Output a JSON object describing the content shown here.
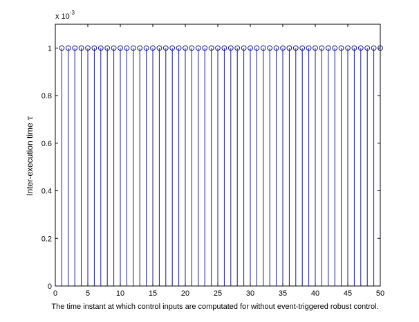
{
  "chart_data": {
    "type": "stem",
    "title": "",
    "xlabel": "The time instant at which control inputs are computated for without event-triggered robust control.",
    "ylabel": "Inter-execution time",
    "ylabel_symbol": "τ",
    "y_exponent_base": "x 10",
    "y_exponent_power": "-3",
    "xlim": [
      0,
      50
    ],
    "ylim": [
      0,
      1.1
    ],
    "x_ticks": [
      0,
      5,
      10,
      15,
      20,
      25,
      30,
      35,
      40,
      45,
      50
    ],
    "x_tick_labels": [
      "0",
      "5",
      "10",
      "15",
      "20",
      "25",
      "30",
      "35",
      "40",
      "45",
      "50"
    ],
    "y_ticks": [
      0,
      0.2,
      0.4,
      0.6,
      0.8,
      1.0
    ],
    "y_tick_labels": [
      "0",
      "0.2",
      "0.4",
      "0.6",
      "0.8",
      "1"
    ],
    "grid": false,
    "marker": "circle-open",
    "color": "#1a1a8c",
    "x": [
      1,
      2,
      3,
      4,
      5,
      6,
      7,
      8,
      9,
      10,
      11,
      12,
      13,
      14,
      15,
      16,
      17,
      18,
      19,
      20,
      21,
      22,
      23,
      24,
      25,
      26,
      27,
      28,
      29,
      30,
      31,
      32,
      33,
      34,
      35,
      36,
      37,
      38,
      39,
      40,
      41,
      42,
      43,
      44,
      45,
      46,
      47,
      48,
      49,
      50
    ],
    "y": [
      1,
      1,
      1,
      1,
      1,
      1,
      1,
      1,
      1,
      1,
      1,
      1,
      1,
      1,
      1,
      1,
      1,
      1,
      1,
      1,
      1,
      1,
      1,
      1,
      1,
      1,
      1,
      1,
      1,
      1,
      1,
      1,
      1,
      1,
      1,
      1,
      1,
      1,
      1,
      1,
      1,
      1,
      1,
      1,
      1,
      1,
      1,
      1,
      1,
      1
    ]
  }
}
